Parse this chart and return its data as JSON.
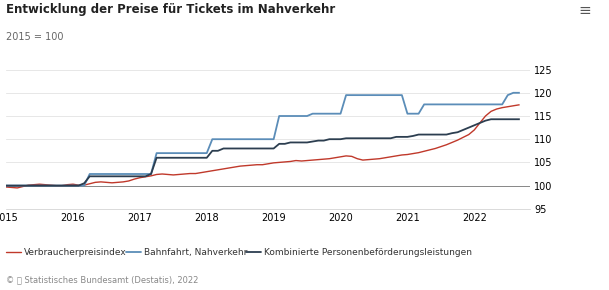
{
  "title": "Entwicklung der Preise für Tickets im Nahverkehr",
  "subtitle": "2015 = 100",
  "footer": "© ⒵ Statistisches Bundesamt (Destatis), 2022",
  "ylim": [
    95,
    125
  ],
  "yticks": [
    95,
    100,
    105,
    110,
    115,
    120,
    125
  ],
  "xlim": [
    2015.0,
    2022.83
  ],
  "xticks": [
    2015,
    2016,
    2017,
    2018,
    2019,
    2020,
    2021,
    2022
  ],
  "bg_color": "#ffffff",
  "grid_color": "#dddddd",
  "line_100_color": "#888888",
  "series": {
    "Verbraucherpreisindex": {
      "color": "#c0392b",
      "linewidth": 1.0,
      "data": {
        "x": [
          2015.0,
          2015.083,
          2015.167,
          2015.25,
          2015.333,
          2015.417,
          2015.5,
          2015.583,
          2015.667,
          2015.75,
          2015.833,
          2015.917,
          2016.0,
          2016.083,
          2016.167,
          2016.25,
          2016.333,
          2016.417,
          2016.5,
          2016.583,
          2016.667,
          2016.75,
          2016.833,
          2016.917,
          2017.0,
          2017.083,
          2017.167,
          2017.25,
          2017.333,
          2017.417,
          2017.5,
          2017.583,
          2017.667,
          2017.75,
          2017.833,
          2017.917,
          2018.0,
          2018.083,
          2018.167,
          2018.25,
          2018.333,
          2018.417,
          2018.5,
          2018.583,
          2018.667,
          2018.75,
          2018.833,
          2018.917,
          2019.0,
          2019.083,
          2019.167,
          2019.25,
          2019.333,
          2019.417,
          2019.5,
          2019.583,
          2019.667,
          2019.75,
          2019.833,
          2019.917,
          2020.0,
          2020.083,
          2020.167,
          2020.25,
          2020.333,
          2020.417,
          2020.5,
          2020.583,
          2020.667,
          2020.75,
          2020.833,
          2020.917,
          2021.0,
          2021.083,
          2021.167,
          2021.25,
          2021.333,
          2021.417,
          2021.5,
          2021.583,
          2021.667,
          2021.75,
          2021.833,
          2021.917,
          2022.0,
          2022.083,
          2022.167,
          2022.25,
          2022.333,
          2022.417,
          2022.5,
          2022.583,
          2022.667
        ],
        "y": [
          99.7,
          99.6,
          99.5,
          99.8,
          100.1,
          100.2,
          100.3,
          100.2,
          100.1,
          100.0,
          100.0,
          100.2,
          100.3,
          100.1,
          100.1,
          100.4,
          100.7,
          100.8,
          100.7,
          100.6,
          100.7,
          100.8,
          101.0,
          101.4,
          101.7,
          101.9,
          102.1,
          102.4,
          102.5,
          102.4,
          102.3,
          102.4,
          102.5,
          102.6,
          102.6,
          102.8,
          103.0,
          103.2,
          103.4,
          103.6,
          103.8,
          104.0,
          104.2,
          104.3,
          104.4,
          104.5,
          104.5,
          104.7,
          104.9,
          105.0,
          105.1,
          105.2,
          105.4,
          105.3,
          105.4,
          105.5,
          105.6,
          105.7,
          105.8,
          106.0,
          106.2,
          106.4,
          106.3,
          105.8,
          105.5,
          105.6,
          105.7,
          105.8,
          106.0,
          106.2,
          106.4,
          106.6,
          106.7,
          106.9,
          107.1,
          107.4,
          107.7,
          108.0,
          108.4,
          108.8,
          109.3,
          109.8,
          110.4,
          111.0,
          112.0,
          113.5,
          115.0,
          116.0,
          116.5,
          116.8,
          117.0,
          117.2,
          117.4
        ]
      }
    },
    "Bahnfahrt, Nahverkehr": {
      "color": "#5b8db8",
      "linewidth": 1.3,
      "data": {
        "x": [
          2015.0,
          2015.083,
          2015.167,
          2015.25,
          2015.333,
          2015.417,
          2015.5,
          2015.583,
          2015.667,
          2015.75,
          2015.833,
          2015.917,
          2016.0,
          2016.083,
          2016.167,
          2016.25,
          2016.333,
          2016.417,
          2016.5,
          2016.583,
          2016.667,
          2016.75,
          2016.833,
          2016.917,
          2017.0,
          2017.083,
          2017.167,
          2017.25,
          2017.333,
          2017.417,
          2017.5,
          2017.583,
          2017.667,
          2017.75,
          2017.833,
          2017.917,
          2018.0,
          2018.083,
          2018.167,
          2018.25,
          2018.333,
          2018.417,
          2018.5,
          2018.583,
          2018.667,
          2018.75,
          2018.833,
          2018.917,
          2019.0,
          2019.083,
          2019.167,
          2019.25,
          2019.333,
          2019.417,
          2019.5,
          2019.583,
          2019.667,
          2019.75,
          2019.833,
          2019.917,
          2020.0,
          2020.083,
          2020.167,
          2020.25,
          2020.333,
          2020.417,
          2020.5,
          2020.583,
          2020.667,
          2020.75,
          2020.833,
          2020.917,
          2021.0,
          2021.083,
          2021.167,
          2021.25,
          2021.333,
          2021.417,
          2021.5,
          2021.583,
          2021.667,
          2021.75,
          2021.833,
          2021.917,
          2022.0,
          2022.083,
          2022.167,
          2022.25,
          2022.333,
          2022.417,
          2022.5,
          2022.583,
          2022.667
        ],
        "y": [
          100.0,
          100.0,
          100.0,
          100.0,
          100.0,
          100.0,
          100.0,
          100.0,
          100.0,
          100.0,
          100.0,
          100.0,
          100.0,
          100.0,
          100.0,
          102.5,
          102.5,
          102.5,
          102.5,
          102.5,
          102.5,
          102.5,
          102.5,
          102.5,
          102.5,
          102.5,
          102.5,
          107.0,
          107.0,
          107.0,
          107.0,
          107.0,
          107.0,
          107.0,
          107.0,
          107.0,
          107.0,
          110.0,
          110.0,
          110.0,
          110.0,
          110.0,
          110.0,
          110.0,
          110.0,
          110.0,
          110.0,
          110.0,
          110.0,
          115.0,
          115.0,
          115.0,
          115.0,
          115.0,
          115.0,
          115.5,
          115.5,
          115.5,
          115.5,
          115.5,
          115.5,
          119.5,
          119.5,
          119.5,
          119.5,
          119.5,
          119.5,
          119.5,
          119.5,
          119.5,
          119.5,
          119.5,
          115.5,
          115.5,
          115.5,
          117.5,
          117.5,
          117.5,
          117.5,
          117.5,
          117.5,
          117.5,
          117.5,
          117.5,
          117.5,
          117.5,
          117.5,
          117.5,
          117.5,
          117.5,
          119.5,
          120.0,
          120.0
        ]
      }
    },
    "Kombinierte Personenbeförderungsleistungen": {
      "color": "#2c3e50",
      "linewidth": 1.3,
      "data": {
        "x": [
          2015.0,
          2015.083,
          2015.167,
          2015.25,
          2015.333,
          2015.417,
          2015.5,
          2015.583,
          2015.667,
          2015.75,
          2015.833,
          2015.917,
          2016.0,
          2016.083,
          2016.167,
          2016.25,
          2016.333,
          2016.417,
          2016.5,
          2016.583,
          2016.667,
          2016.75,
          2016.833,
          2016.917,
          2017.0,
          2017.083,
          2017.167,
          2017.25,
          2017.333,
          2017.417,
          2017.5,
          2017.583,
          2017.667,
          2017.75,
          2017.833,
          2017.917,
          2018.0,
          2018.083,
          2018.167,
          2018.25,
          2018.333,
          2018.417,
          2018.5,
          2018.583,
          2018.667,
          2018.75,
          2018.833,
          2018.917,
          2019.0,
          2019.083,
          2019.167,
          2019.25,
          2019.333,
          2019.417,
          2019.5,
          2019.583,
          2019.667,
          2019.75,
          2019.833,
          2019.917,
          2020.0,
          2020.083,
          2020.167,
          2020.25,
          2020.333,
          2020.417,
          2020.5,
          2020.583,
          2020.667,
          2020.75,
          2020.833,
          2020.917,
          2021.0,
          2021.083,
          2021.167,
          2021.25,
          2021.333,
          2021.417,
          2021.5,
          2021.583,
          2021.667,
          2021.75,
          2021.833,
          2021.917,
          2022.0,
          2022.083,
          2022.167,
          2022.25,
          2022.333,
          2022.417,
          2022.5,
          2022.583,
          2022.667
        ],
        "y": [
          100.0,
          100.0,
          100.0,
          100.0,
          100.0,
          100.0,
          100.0,
          100.0,
          100.0,
          100.0,
          100.0,
          100.0,
          100.0,
          100.0,
          100.5,
          102.0,
          102.0,
          102.0,
          102.0,
          102.0,
          102.0,
          102.0,
          102.0,
          102.0,
          102.0,
          102.0,
          102.5,
          106.0,
          106.0,
          106.0,
          106.0,
          106.0,
          106.0,
          106.0,
          106.0,
          106.0,
          106.0,
          107.5,
          107.5,
          108.0,
          108.0,
          108.0,
          108.0,
          108.0,
          108.0,
          108.0,
          108.0,
          108.0,
          108.0,
          109.0,
          109.0,
          109.3,
          109.3,
          109.3,
          109.3,
          109.5,
          109.7,
          109.7,
          110.0,
          110.0,
          110.0,
          110.2,
          110.2,
          110.2,
          110.2,
          110.2,
          110.2,
          110.2,
          110.2,
          110.2,
          110.5,
          110.5,
          110.5,
          110.7,
          111.0,
          111.0,
          111.0,
          111.0,
          111.0,
          111.0,
          111.3,
          111.5,
          112.0,
          112.5,
          113.0,
          113.5,
          114.0,
          114.3,
          114.3,
          114.3,
          114.3,
          114.3,
          114.3
        ]
      }
    }
  }
}
